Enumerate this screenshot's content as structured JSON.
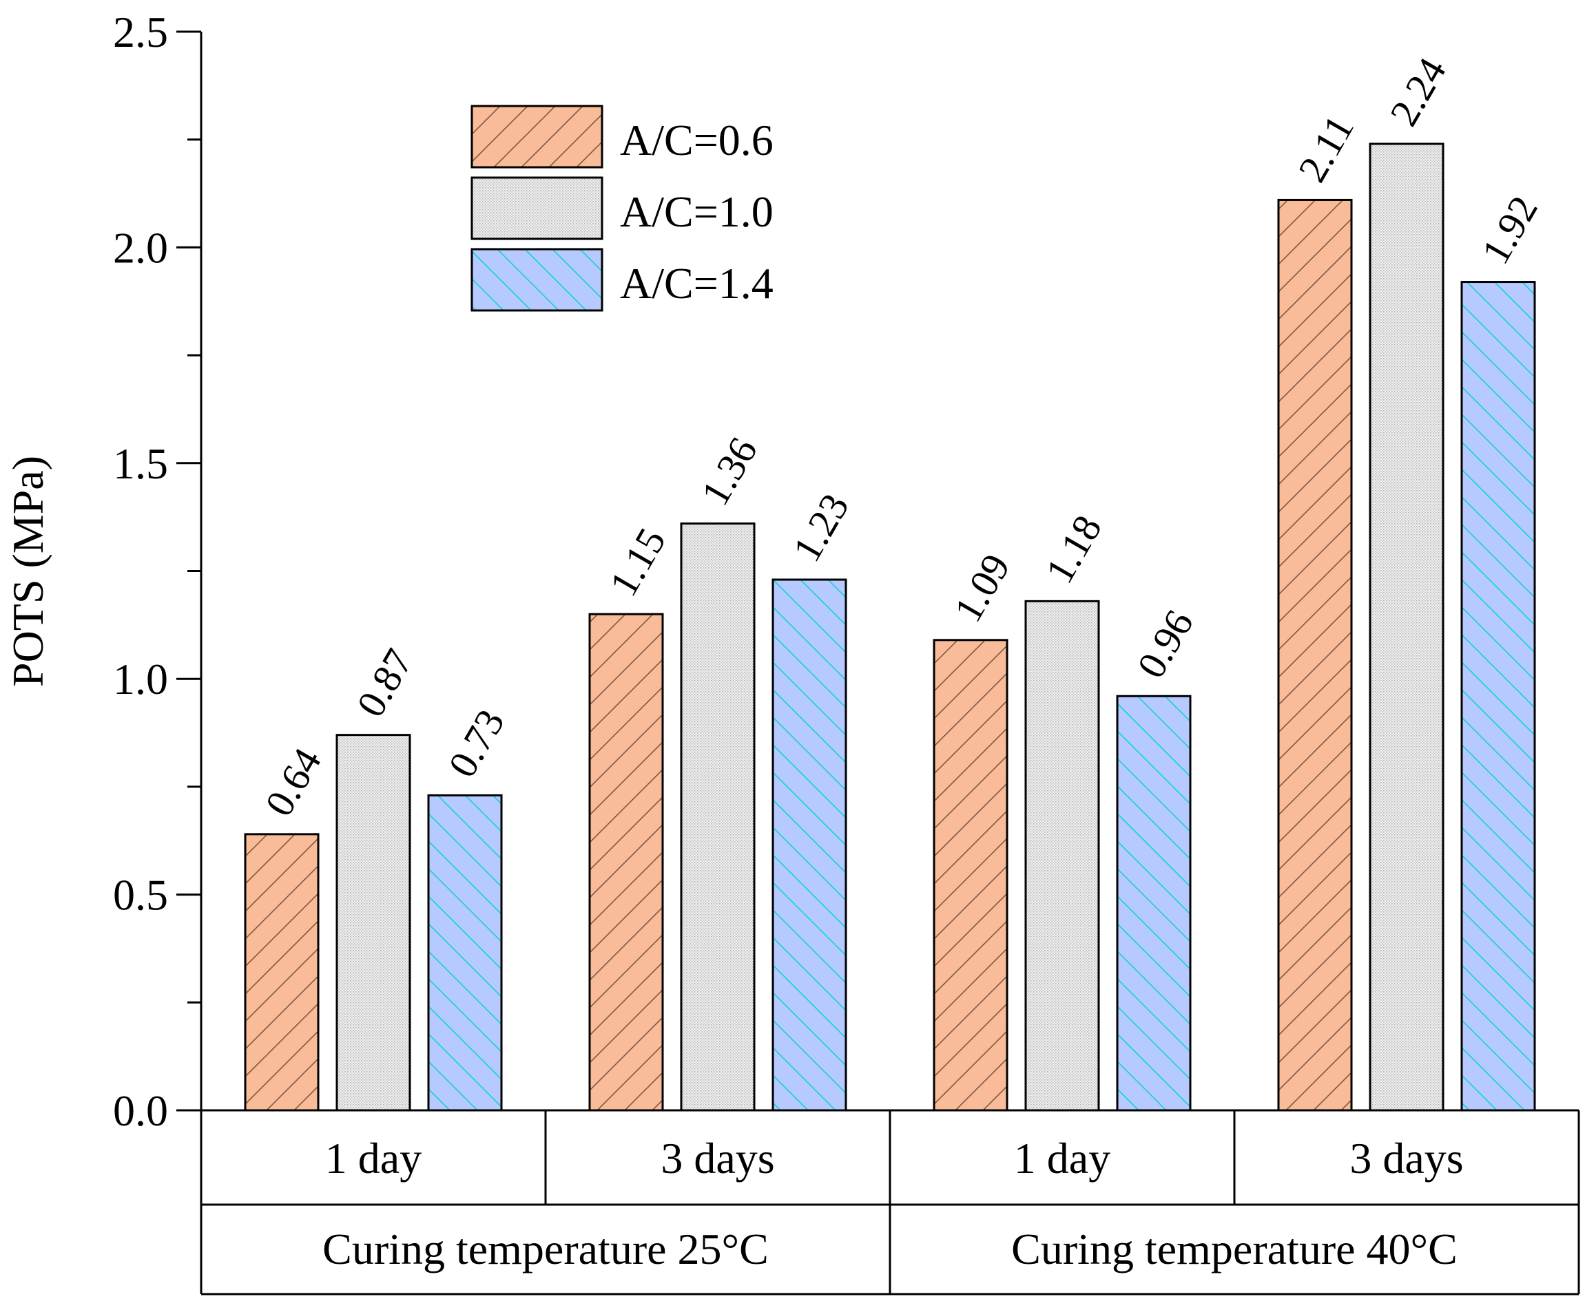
{
  "chart_data": {
    "type": "bar",
    "ylabel": "POTS (MPa)",
    "ylim": [
      0,
      2.5
    ],
    "yticks": [
      "0.0",
      "0.5",
      "1.0",
      "1.5",
      "2.0",
      "2.5"
    ],
    "categories": [
      "1 day",
      "3 days",
      "1 day",
      "3 days"
    ],
    "groups": [
      "Curing temperature 25°C",
      "Curing temperature 40°C"
    ],
    "series": [
      {
        "name": "A/C=0.6",
        "values": [
          0.64,
          1.15,
          1.09,
          2.11
        ],
        "labels": [
          "0.64",
          "1.15",
          "1.09",
          "2.11"
        ],
        "color": "#f9bb98",
        "hatch": "forward",
        "hatch_color": "#7a5a48"
      },
      {
        "name": "A/C=1.0",
        "values": [
          0.87,
          1.36,
          1.18,
          2.24
        ],
        "labels": [
          "0.87",
          "1.36",
          "1.18",
          "2.24"
        ],
        "color": "#ededed",
        "hatch": "dots",
        "hatch_color": "#b8b8b8"
      },
      {
        "name": "A/C=1.4",
        "values": [
          0.73,
          1.23,
          0.96,
          1.92
        ],
        "labels": [
          "0.73",
          "1.23",
          "0.96",
          "1.92"
        ],
        "color": "#b6caff",
        "hatch": "back",
        "hatch_color": "#10d4d4"
      }
    ]
  }
}
